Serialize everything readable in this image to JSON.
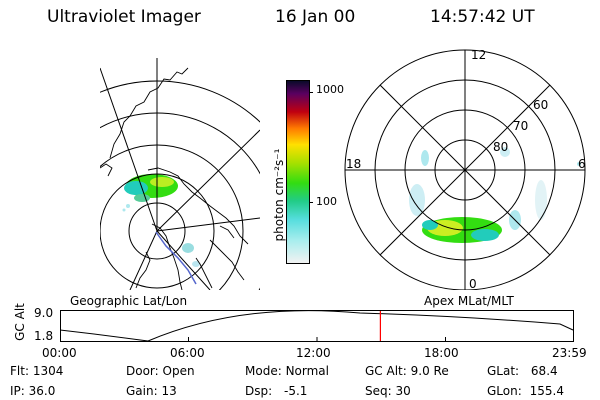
{
  "header": {
    "instrument": "Ultraviolet Imager",
    "date": "16 Jan 00",
    "time": "14:57:42 UT"
  },
  "left_panel": {
    "caption": "Geographic Lat/Lon"
  },
  "right_panel": {
    "caption": "Apex MLat/MLT",
    "mlt_labels": [
      "12",
      "18",
      "6",
      "0"
    ],
    "mlat_labels": [
      "60",
      "70",
      "80"
    ]
  },
  "colorbar": {
    "unit_label": "photon cm⁻²s⁻¹",
    "tick_labels": [
      "1000",
      "100"
    ]
  },
  "orbit": {
    "axis_label": "GC Alt",
    "y_ticks": [
      "9.0",
      "1.8"
    ],
    "x_ticks": [
      "00:00",
      "06:00",
      "12:00",
      "18:00",
      "23:59"
    ],
    "current_time_hours": 14.96
  },
  "info": {
    "flt_label": "Flt:",
    "flt_value": "1304",
    "ip_label": "IP:",
    "ip_value": "36.0",
    "door_label": "Door:",
    "door_value": "Open",
    "gain_label": "Gain:",
    "gain_value": "13",
    "mode_label": "Mode:",
    "mode_value": "Normal",
    "dsp_label": "Dsp:",
    "dsp_value": "-5.1",
    "gcalt_label": "GC Alt:",
    "gcalt_value": "9.0 Re",
    "seq_label": "Seq:",
    "seq_value": "30",
    "glat_label": "GLat:",
    "glat_value": "68.4",
    "glon_label": "GLon:",
    "glon_value": "155.4"
  },
  "colors": {
    "orbit_marker": "#ff0000",
    "auroral_green": "#33dd11",
    "auroral_cyan": "#22ccbb"
  }
}
